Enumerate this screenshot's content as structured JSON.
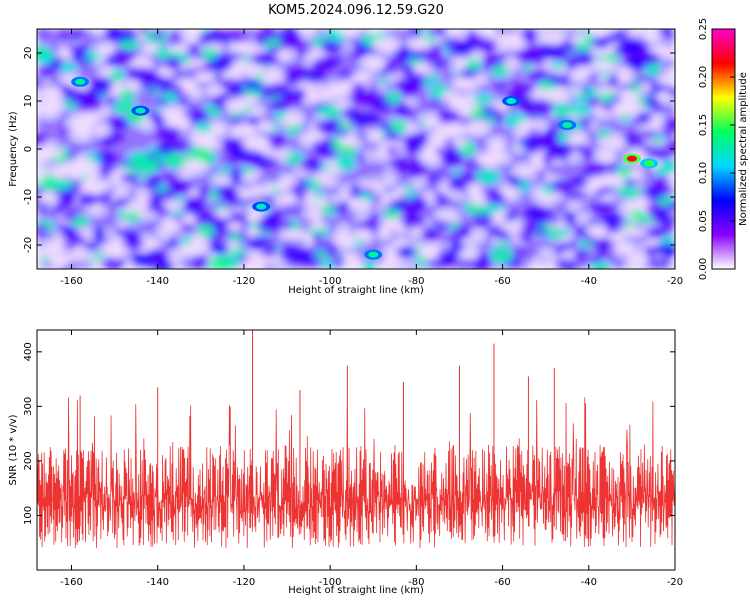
{
  "title": "KOM5.2024.096.12.59.G20",
  "chart_data": [
    {
      "type": "heatmap",
      "xlabel": "Height of straight line (km)",
      "ylabel": "Frequency (Hz)",
      "xlim": [
        -168,
        -20
      ],
      "ylim": [
        -25,
        25
      ],
      "xticks": [
        -160,
        -140,
        -120,
        -100,
        -80,
        -60,
        -40,
        -20
      ],
      "yticks": [
        -20,
        -10,
        0,
        10,
        20
      ],
      "colorbar": {
        "label": "Normalized spectral amplitude",
        "range": [
          0.0,
          0.25
        ],
        "ticks": [
          "0.00",
          "0.05",
          "0.10",
          "0.15",
          "0.20",
          "0.25"
        ],
        "colors": [
          "#ffffff",
          "#8a00ff",
          "#0000ff",
          "#00d8ff",
          "#00ff60",
          "#ffff00",
          "#ff0000",
          "#ff00cc"
        ]
      },
      "notable_peaks": [
        {
          "x": -30,
          "y": -2,
          "value": 0.22
        },
        {
          "x": -158,
          "y": 14,
          "value": 0.13
        },
        {
          "x": -144,
          "y": 8,
          "value": 0.12
        },
        {
          "x": -58,
          "y": 10,
          "value": 0.12
        },
        {
          "x": -45,
          "y": 5,
          "value": 0.13
        },
        {
          "x": -26,
          "y": -3,
          "value": 0.15
        },
        {
          "x": -116,
          "y": -12,
          "value": 0.12
        },
        {
          "x": -90,
          "y": -22,
          "value": 0.13
        }
      ]
    },
    {
      "type": "line",
      "xlabel": "Height of straight line (km)",
      "ylabel": "SNR (10 * v/v)",
      "xlim": [
        -168,
        -20
      ],
      "ylim": [
        0,
        440
      ],
      "xticks": [
        -160,
        -140,
        -120,
        -100,
        -80,
        -60,
        -40,
        -20
      ],
      "yticks": [
        100,
        200,
        300,
        400
      ],
      "series_color": "#ee3333",
      "typical_range": [
        40,
        230
      ],
      "peaks": [
        {
          "x": -118,
          "y": 440
        },
        {
          "x": -62,
          "y": 415
        },
        {
          "x": -70,
          "y": 375
        },
        {
          "x": -48,
          "y": 370
        },
        {
          "x": -96,
          "y": 375
        },
        {
          "x": -54,
          "y": 355
        },
        {
          "x": -140,
          "y": 335
        },
        {
          "x": -83,
          "y": 345
        },
        {
          "x": -107,
          "y": 330
        },
        {
          "x": -158,
          "y": 320
        }
      ]
    }
  ]
}
